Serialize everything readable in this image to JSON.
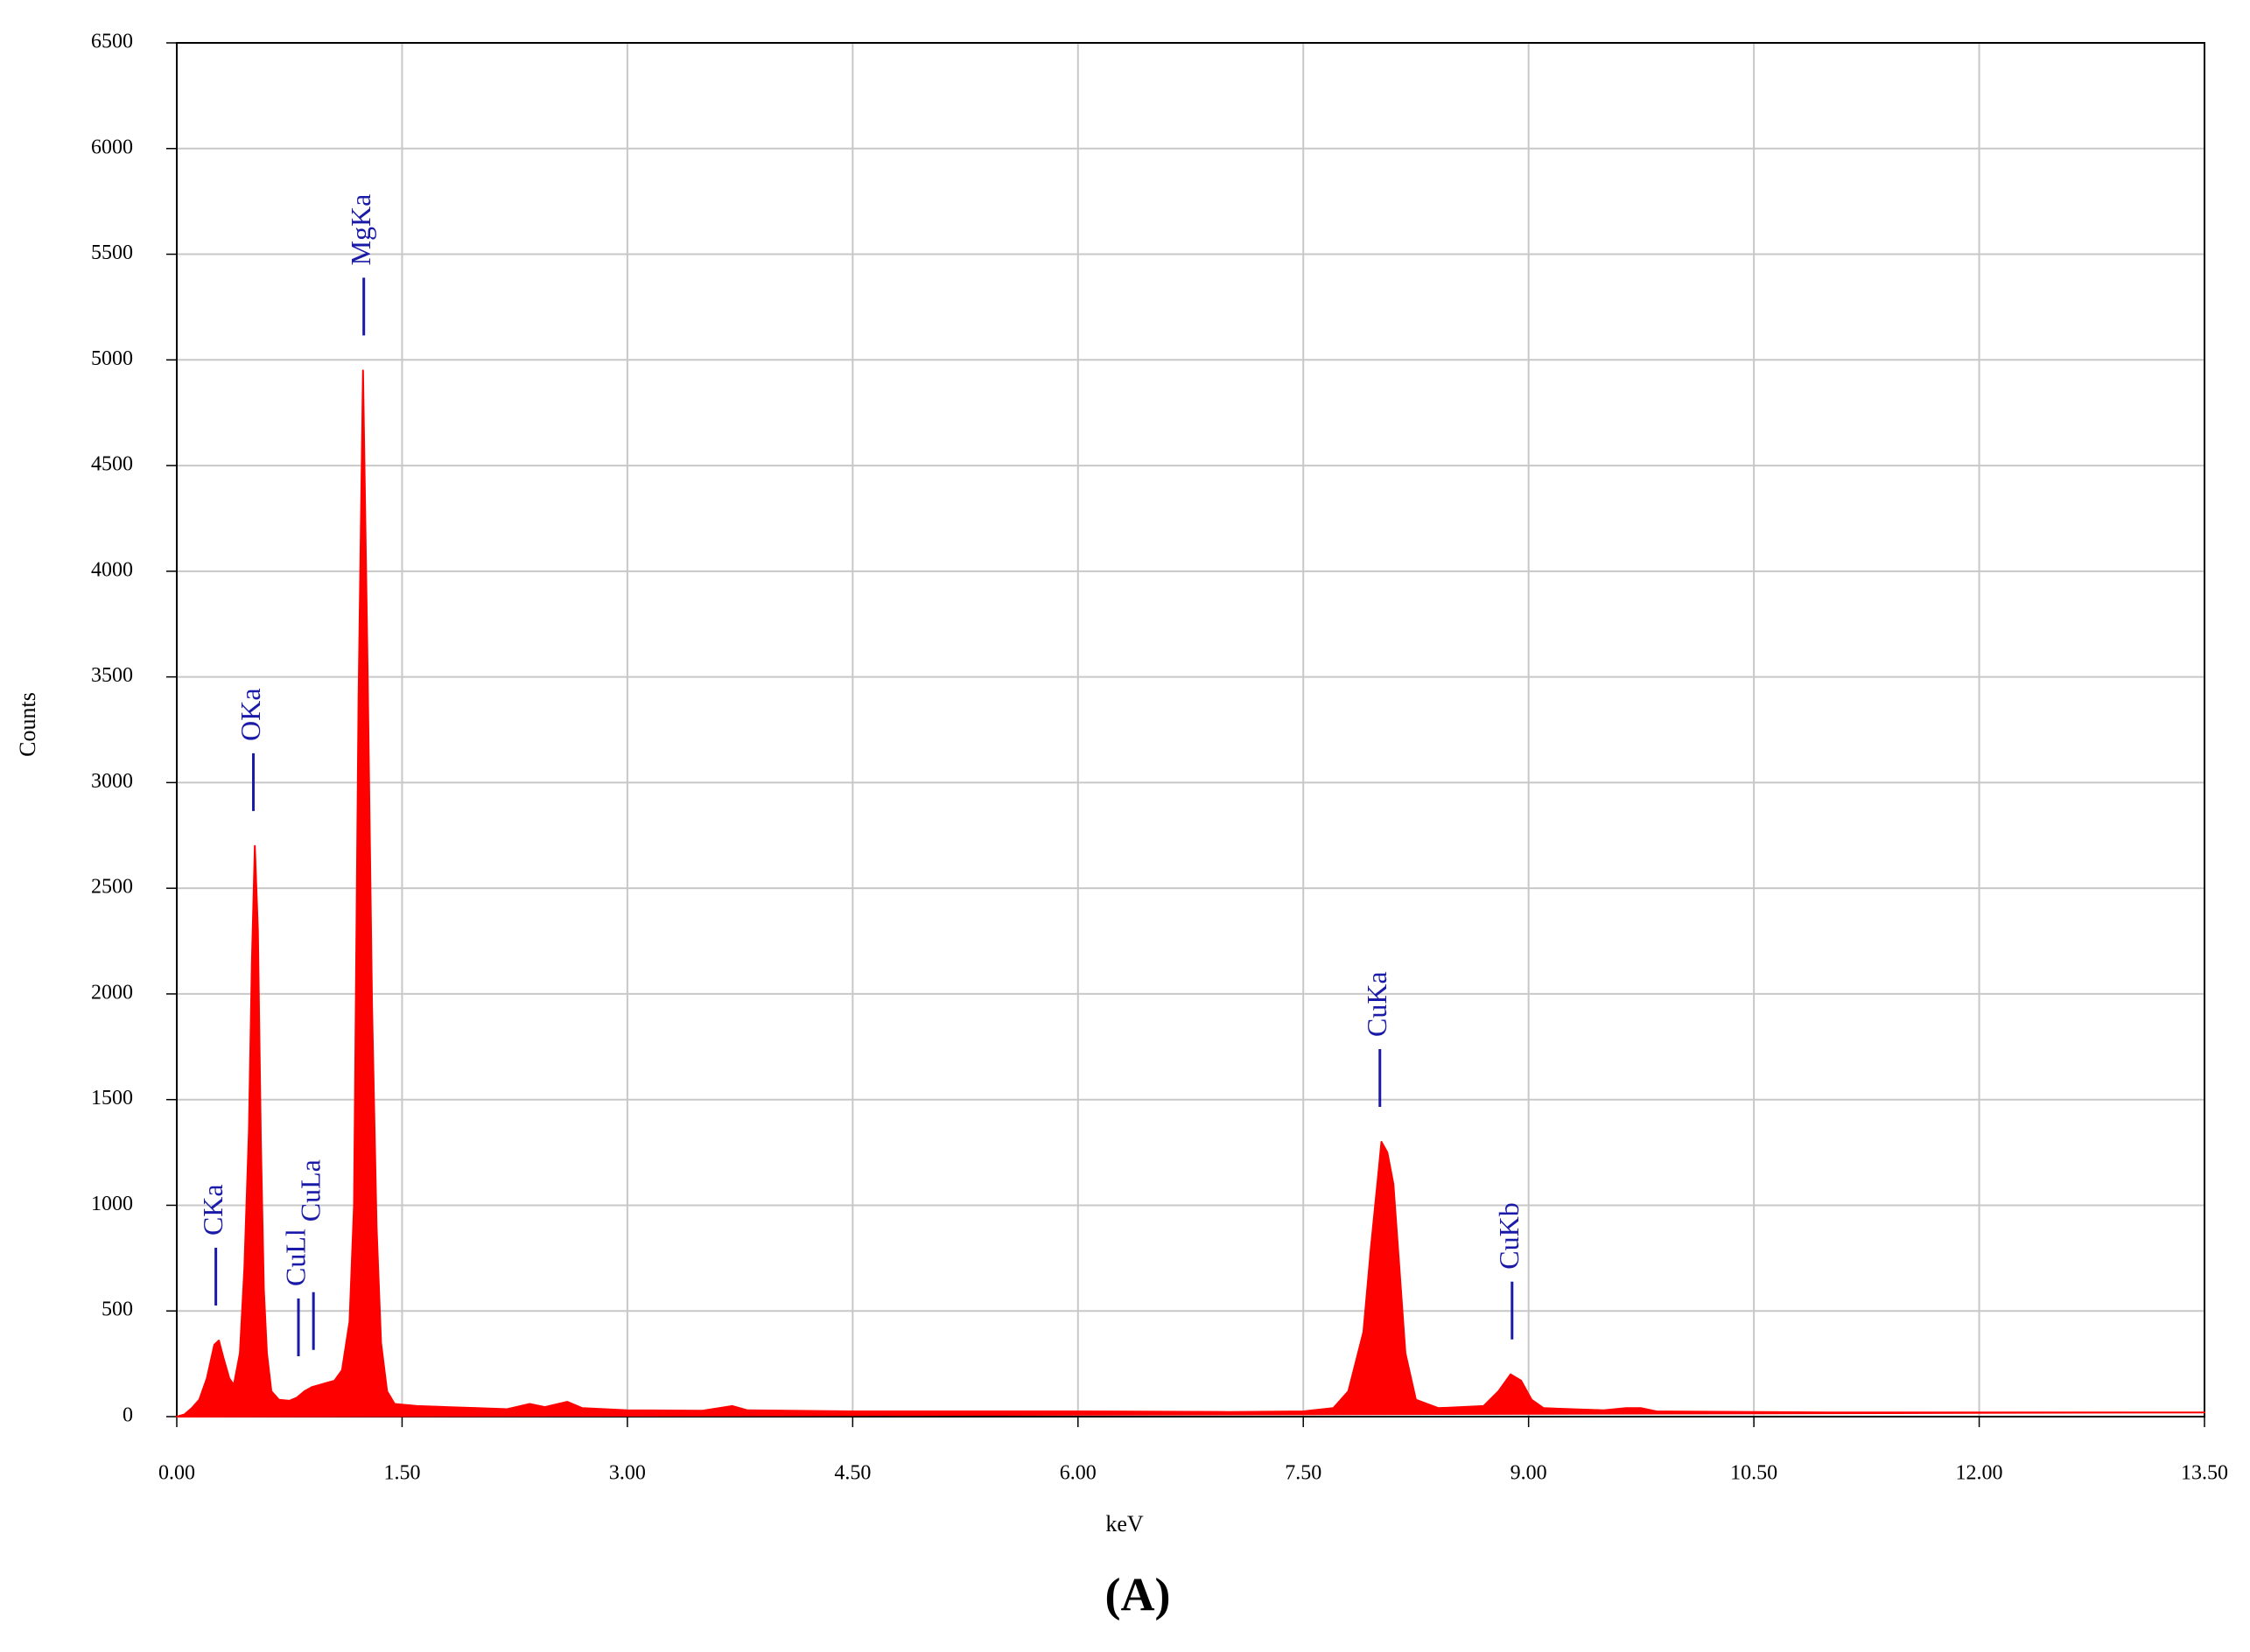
{
  "chart_data": {
    "type": "area",
    "panel_label": "(A)",
    "x_label": "keV",
    "y_label": "Counts",
    "color": "#ff0000",
    "annotation_color": "#1a1aa8",
    "grid": true,
    "x": [
      0.0,
      0.05,
      0.1,
      0.15,
      0.2,
      0.25,
      0.28,
      0.31,
      0.35,
      0.38,
      0.42,
      0.45,
      0.48,
      0.5,
      0.52,
      0.54,
      0.56,
      0.58,
      0.6,
      0.63,
      0.68,
      0.75,
      0.8,
      0.85,
      0.9,
      0.95,
      1.0,
      1.05,
      1.1,
      1.15,
      1.18,
      1.21,
      1.24,
      1.27,
      1.3,
      1.33,
      1.36,
      1.4,
      1.45,
      1.6,
      1.8,
      2.0,
      2.2,
      2.35,
      2.45,
      2.6,
      2.7,
      3.0,
      3.5,
      3.7,
      3.8,
      4.5,
      5.0,
      6.0,
      7.0,
      7.5,
      7.7,
      7.8,
      7.9,
      7.95,
      8.0,
      8.02,
      8.06,
      8.1,
      8.14,
      8.18,
      8.25,
      8.4,
      8.7,
      8.8,
      8.88,
      8.95,
      9.02,
      9.1,
      9.5,
      9.65,
      9.75,
      9.85,
      11.0,
      12.0,
      13.5
    ],
    "values": [
      0,
      10,
      40,
      80,
      180,
      340,
      360,
      280,
      180,
      150,
      300,
      700,
      1350,
      2150,
      2700,
      2300,
      1300,
      600,
      300,
      120,
      80,
      75,
      90,
      120,
      140,
      150,
      160,
      170,
      220,
      450,
      1000,
      3400,
      4950,
      3550,
      1950,
      900,
      350,
      120,
      60,
      50,
      45,
      40,
      35,
      60,
      45,
      70,
      40,
      30,
      28,
      50,
      30,
      25,
      25,
      25,
      22,
      25,
      40,
      120,
      400,
      800,
      1150,
      1300,
      1250,
      1100,
      700,
      300,
      80,
      40,
      50,
      120,
      200,
      170,
      80,
      40,
      30,
      40,
      40,
      25,
      20,
      20,
      20
    ],
    "annotations": [
      {
        "text": "CKa",
        "x": 0.26
      },
      {
        "text": "OKa",
        "x": 0.51
      },
      {
        "text": "CuLl",
        "x": 0.81
      },
      {
        "text": "CuLa",
        "x": 0.91
      },
      {
        "text": "MgKa",
        "x": 1.245
      },
      {
        "text": "CuKa",
        "x": 8.01
      },
      {
        "text": "CuKb",
        "x": 8.89
      }
    ],
    "xlim": [
      0,
      13.5
    ],
    "xticks": [
      {
        "value": 0,
        "label": "0.00"
      },
      {
        "value": 1.5,
        "label": "1.50"
      },
      {
        "value": 3,
        "label": "3.00"
      },
      {
        "value": 4.5,
        "label": "4.50"
      },
      {
        "value": 6,
        "label": "6.00"
      },
      {
        "value": 7.5,
        "label": "7.50"
      },
      {
        "value": 9,
        "label": "9.00"
      },
      {
        "value": 10.5,
        "label": "10.50"
      },
      {
        "value": 12,
        "label": "12.00"
      },
      {
        "value": 13.5,
        "label": "13.50"
      }
    ],
    "ylim": [
      0,
      6500
    ],
    "yticks": [
      0,
      500,
      1000,
      1500,
      2000,
      2500,
      3000,
      3500,
      4000,
      4500,
      5000,
      5500,
      6000,
      6500
    ]
  }
}
